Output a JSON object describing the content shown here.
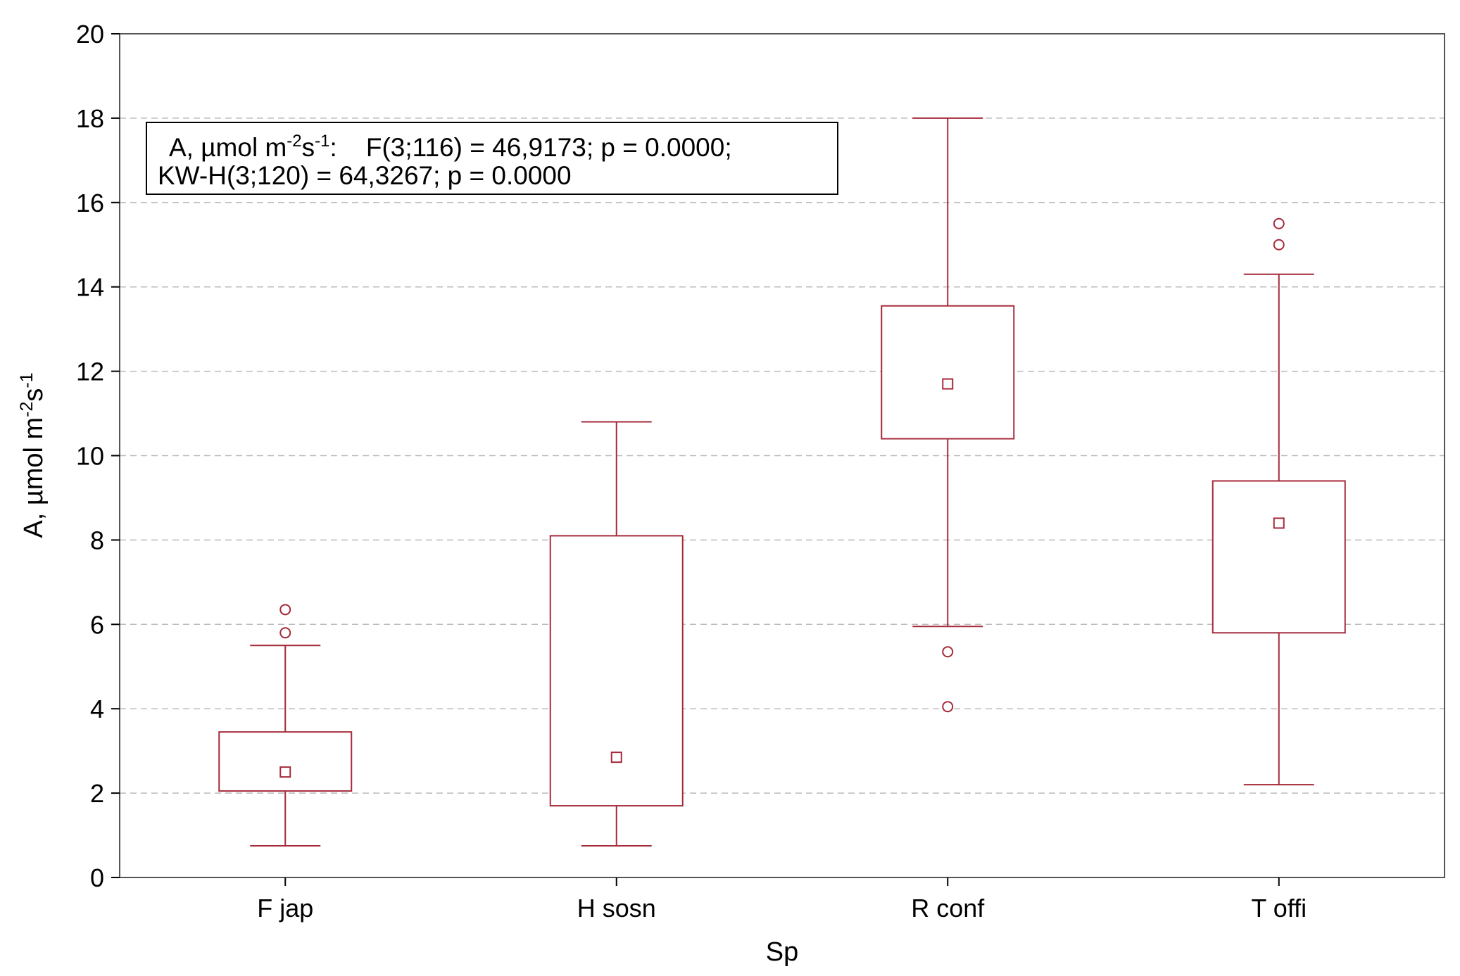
{
  "chart_data": {
    "type": "box",
    "xlabel": "Sp",
    "ylabel": {
      "base": "A, µmol m",
      "sup1": "-2",
      "mid": "s",
      "sup2": "-1"
    },
    "ylim": [
      0,
      20
    ],
    "yticks": [
      0,
      2,
      4,
      6,
      8,
      10,
      12,
      14,
      16,
      18,
      20
    ],
    "grid": "horizontal dashed",
    "categories": [
      "F jap",
      "H sosn",
      "R conf",
      "T offi"
    ],
    "boxes": [
      {
        "category": "F jap",
        "whisker_low": 0.75,
        "q1": 2.05,
        "median": 2.5,
        "q3": 3.45,
        "whisker_high": 5.5,
        "outliers": [
          5.8,
          6.35
        ]
      },
      {
        "category": "H sosn",
        "whisker_low": 0.75,
        "q1": 1.7,
        "median": 2.85,
        "q3": 8.1,
        "whisker_high": 10.8,
        "outliers": []
      },
      {
        "category": "R conf",
        "whisker_low": 5.95,
        "q1": 10.4,
        "median": 11.7,
        "q3": 13.55,
        "whisker_high": 18.0,
        "outliers": [
          5.35,
          4.05
        ]
      },
      {
        "category": "T offi",
        "whisker_low": 2.2,
        "q1": 5.8,
        "median": 8.4,
        "q3": 9.4,
        "whisker_high": 14.3,
        "outliers": [
          15.0,
          15.5
        ]
      }
    ],
    "annotation": {
      "line1_prefix": "A, µmol m",
      "line1_sup1": "-2",
      "line1_mid": "s",
      "line1_sup2": "-1",
      "line1_suffix": ":    F(3;116) = 46,9173; p = 0.0000;",
      "line2": "KW-H(3;120) = 64,3267; p = 0.0000"
    },
    "colors": {
      "box": "#a52a3a",
      "grid": "#bbbbbb",
      "axis": "#000000"
    }
  }
}
